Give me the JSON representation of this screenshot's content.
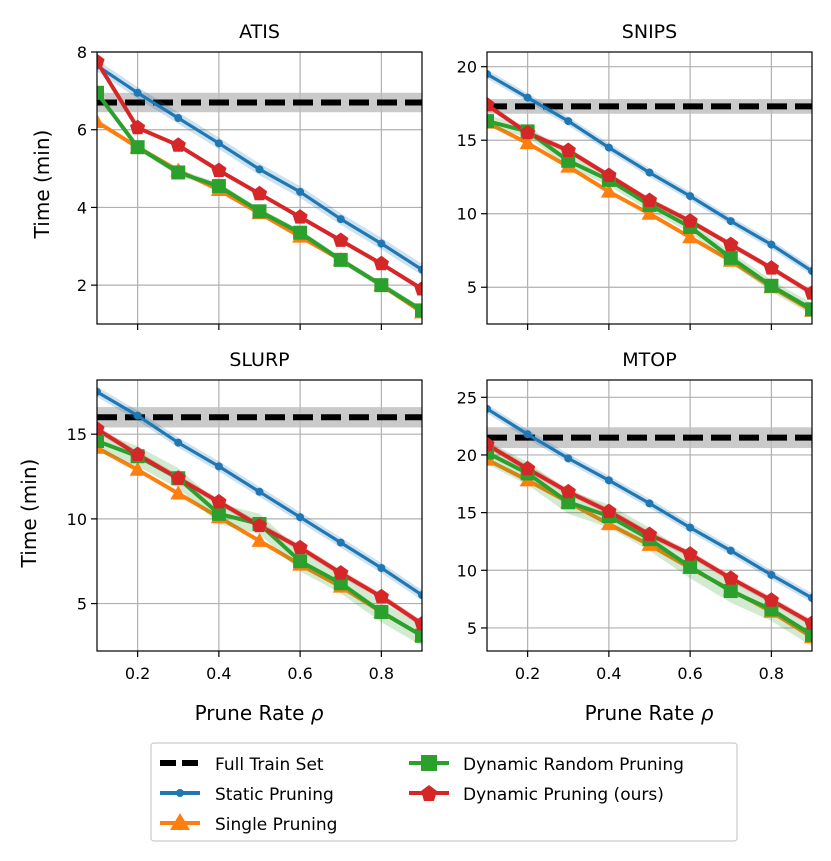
{
  "colors": {
    "full": "#000000",
    "static": "#1f77b4",
    "single": "#ff7f0e",
    "random": "#2ca02c",
    "dynamic": "#d62728",
    "grid": "#b0b0b0",
    "band_full": "#bdbdbd"
  },
  "shared": {
    "x_label": "Prune Rate ρ",
    "x_label_text": "Prune Rate",
    "x_label_symbol": "ρ",
    "y_label": "Time (min)",
    "x_ticks": [
      "0.2",
      "0.4",
      "0.6",
      "0.8"
    ]
  },
  "legend": {
    "entries": [
      {
        "key": "full",
        "label": "Full Train Set"
      },
      {
        "key": "static",
        "label": "Static Pruning"
      },
      {
        "key": "single",
        "label": "Single Pruning"
      },
      {
        "key": "random",
        "label": "Dynamic Random Pruning"
      },
      {
        "key": "dynamic",
        "label": "Dynamic Pruning (ours)"
      }
    ]
  },
  "chart_data": [
    {
      "type": "line",
      "title": "ATIS",
      "xlabel": "",
      "ylabel": "Time (min)",
      "xlim": [
        0.1,
        0.9
      ],
      "ylim": [
        1.0,
        8.0
      ],
      "y_ticks": [
        2,
        4,
        6,
        8
      ],
      "y_tick_labels": [
        "2",
        "4",
        "6",
        "8"
      ],
      "x": [
        0.1,
        0.2,
        0.3,
        0.4,
        0.5,
        0.6,
        0.7,
        0.8,
        0.9
      ],
      "full": 6.7,
      "full_band": [
        6.45,
        6.95
      ],
      "series": [
        {
          "key": "static",
          "name": "Static Pruning",
          "values": [
            7.65,
            6.95,
            6.3,
            5.65,
            4.98,
            4.4,
            3.7,
            3.07,
            2.4
          ],
          "band": 0.15
        },
        {
          "key": "single",
          "name": "Single Pruning",
          "values": [
            6.2,
            5.55,
            4.95,
            4.45,
            3.85,
            3.25,
            2.65,
            2.0,
            1.3
          ],
          "band": 0
        },
        {
          "key": "random",
          "name": "Dynamic Random Pruning",
          "values": [
            6.95,
            5.55,
            4.9,
            4.55,
            3.9,
            3.35,
            2.65,
            2.0,
            1.35
          ],
          "band": 0.08
        },
        {
          "key": "dynamic",
          "name": "Dynamic Pruning (ours)",
          "values": [
            7.75,
            6.05,
            5.6,
            4.95,
            4.35,
            3.75,
            3.15,
            2.55,
            1.9
          ],
          "band": 0.05
        }
      ]
    },
    {
      "type": "line",
      "title": "SNIPS",
      "xlabel": "",
      "ylabel": "",
      "xlim": [
        0.1,
        0.9
      ],
      "ylim": [
        2.5,
        21.0
      ],
      "y_ticks": [
        5,
        10,
        15,
        20
      ],
      "y_tick_labels": [
        "5",
        "10",
        "15",
        "20"
      ],
      "x": [
        0.1,
        0.2,
        0.3,
        0.4,
        0.5,
        0.6,
        0.7,
        0.8,
        0.9
      ],
      "full": 17.3,
      "full_band": [
        16.8,
        17.8
      ],
      "series": [
        {
          "key": "static",
          "name": "Static Pruning",
          "values": [
            19.5,
            17.9,
            16.3,
            14.5,
            12.8,
            11.2,
            9.5,
            7.9,
            6.1
          ],
          "band": 0.3
        },
        {
          "key": "single",
          "name": "Single Pruning",
          "values": [
            16.2,
            14.8,
            13.2,
            11.5,
            10.0,
            8.4,
            6.8,
            5.0,
            3.4
          ],
          "band": 0
        },
        {
          "key": "random",
          "name": "Dynamic Random Pruning",
          "values": [
            16.3,
            15.6,
            13.6,
            12.3,
            10.6,
            9.1,
            7.0,
            5.1,
            3.5
          ],
          "band": 0.4
        },
        {
          "key": "dynamic",
          "name": "Dynamic Pruning (ours)",
          "values": [
            17.4,
            15.5,
            14.3,
            12.6,
            10.9,
            9.5,
            7.9,
            6.3,
            4.6
          ],
          "band": 0.2
        }
      ]
    },
    {
      "type": "line",
      "title": "SLURP",
      "xlabel": "Prune Rate ρ",
      "ylabel": "Time (min)",
      "xlim": [
        0.1,
        0.9
      ],
      "ylim": [
        2.2,
        18.2
      ],
      "y_ticks": [
        5,
        10,
        15
      ],
      "y_tick_labels": [
        "5",
        "10",
        "15"
      ],
      "x": [
        0.1,
        0.2,
        0.3,
        0.4,
        0.5,
        0.6,
        0.7,
        0.8,
        0.9
      ],
      "full": 16.0,
      "full_band": [
        15.4,
        16.6
      ],
      "series": [
        {
          "key": "static",
          "name": "Static Pruning",
          "values": [
            17.5,
            16.1,
            14.5,
            13.1,
            11.6,
            10.1,
            8.6,
            7.1,
            5.5
          ],
          "band": 0.3
        },
        {
          "key": "single",
          "name": "Single Pruning",
          "values": [
            14.2,
            12.9,
            11.5,
            10.1,
            8.7,
            7.3,
            6.0,
            4.5,
            3.1
          ],
          "band": 0
        },
        {
          "key": "random",
          "name": "Dynamic Random Pruning",
          "values": [
            14.6,
            13.7,
            12.4,
            10.3,
            9.7,
            7.5,
            6.2,
            4.5,
            3.1
          ],
          "band": 0.6
        },
        {
          "key": "dynamic",
          "name": "Dynamic Pruning (ours)",
          "values": [
            15.3,
            13.8,
            12.4,
            11.0,
            9.6,
            8.3,
            6.8,
            5.4,
            3.8
          ],
          "band": 0.2
        }
      ]
    },
    {
      "type": "line",
      "title": "MTOP",
      "xlabel": "Prune Rate ρ",
      "ylabel": "",
      "xlim": [
        0.1,
        0.9
      ],
      "ylim": [
        3.0,
        26.5
      ],
      "y_ticks": [
        5,
        10,
        15,
        20,
        25
      ],
      "y_tick_labels": [
        "5",
        "10",
        "15",
        "20",
        "25"
      ],
      "x": [
        0.1,
        0.2,
        0.3,
        0.4,
        0.5,
        0.6,
        0.7,
        0.8,
        0.9
      ],
      "full": 21.5,
      "full_band": [
        20.6,
        22.4
      ],
      "series": [
        {
          "key": "static",
          "name": "Static Pruning",
          "values": [
            24.0,
            21.8,
            19.7,
            17.8,
            15.8,
            13.7,
            11.7,
            9.6,
            7.6
          ],
          "band": 0.4
        },
        {
          "key": "single",
          "name": "Single Pruning",
          "values": [
            19.6,
            17.8,
            15.9,
            14.0,
            12.2,
            10.2,
            8.3,
            6.4,
            4.2
          ],
          "band": 0
        },
        {
          "key": "random",
          "name": "Dynamic Random Pruning",
          "values": [
            20.2,
            18.4,
            15.9,
            14.7,
            12.7,
            10.3,
            8.2,
            6.6,
            4.4
          ],
          "band": 1.0
        },
        {
          "key": "dynamic",
          "name": "Dynamic Pruning (ours)",
          "values": [
            20.9,
            18.8,
            16.8,
            15.1,
            13.1,
            11.4,
            9.3,
            7.4,
            5.4
          ],
          "band": 0.3
        }
      ]
    }
  ]
}
